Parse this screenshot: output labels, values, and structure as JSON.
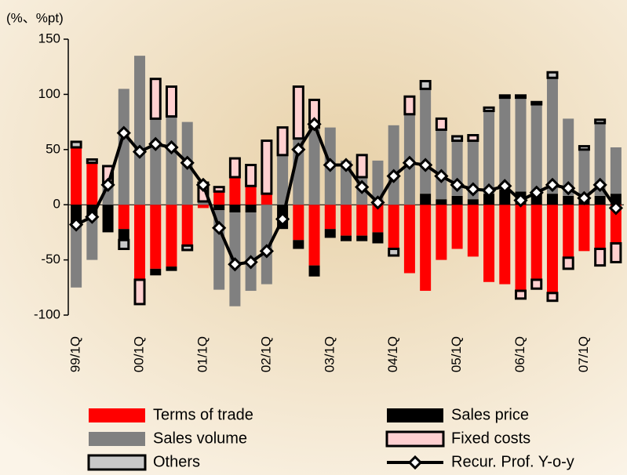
{
  "chart_data": {
    "type": "bar",
    "stacked": true,
    "y_label": "(%、%pt)",
    "categories": [
      "99/1Q",
      null,
      null,
      null,
      "00/1Q",
      null,
      null,
      null,
      "01/1Q",
      null,
      null,
      null,
      "02/1Q",
      null,
      null,
      null,
      "03/1Q",
      null,
      null,
      null,
      "04/1Q",
      null,
      null,
      null,
      "05/1Q",
      null,
      null,
      null,
      "06/1Q",
      null,
      null,
      null,
      "07/1Q",
      null,
      null
    ],
    "ylim": [
      -100,
      150
    ],
    "yticks": [
      -100,
      -50,
      0,
      50,
      100,
      150
    ],
    "series": [
      {
        "name": "Terms of trade",
        "color": "#ff0000",
        "values": [
          52,
          38,
          0,
          -22,
          -68,
          -58,
          -56,
          -37,
          -3,
          12,
          25,
          17,
          10,
          0,
          -32,
          -55,
          -22,
          -28,
          -28,
          -25,
          -40,
          -62,
          -78,
          -50,
          -40,
          -47,
          -70,
          -72,
          -78,
          -68,
          -80,
          -48,
          -42,
          -40,
          -35
        ]
      },
      {
        "name": "Sales price",
        "color": "#000000",
        "values": [
          -20,
          -10,
          -25,
          -10,
          0,
          -6,
          -4,
          0,
          0,
          -5,
          -7,
          -7,
          0,
          -22,
          -8,
          -10,
          -8,
          -5,
          -5,
          -10,
          0,
          0,
          10,
          5,
          8,
          5,
          10,
          14,
          12,
          10,
          10,
          8,
          5,
          8,
          10
        ]
      },
      {
        "name": "Sales volume",
        "color": "#808080",
        "values": [
          -55,
          -40,
          20,
          105,
          135,
          78,
          80,
          75,
          3,
          -72,
          -85,
          -71,
          -72,
          45,
          60,
          70,
          70,
          40,
          25,
          40,
          72,
          82,
          95,
          63,
          50,
          53,
          75,
          83,
          85,
          81,
          105,
          70,
          45,
          66,
          42
        ]
      },
      {
        "name": "Fixed costs",
        "color": "#ffd0d0",
        "values": [
          0,
          0,
          15,
          0,
          -22,
          36,
          27,
          0,
          17,
          4,
          17,
          19,
          48,
          25,
          47,
          25,
          0,
          0,
          20,
          0,
          0,
          16,
          0,
          10,
          0,
          5,
          0,
          0,
          -7,
          -8,
          -7,
          -10,
          0,
          -15,
          -17
        ]
      },
      {
        "name": "Others",
        "color": "#c8c8c8",
        "values": [
          5,
          3,
          0,
          -8,
          0,
          0,
          0,
          -4,
          0,
          0,
          0,
          0,
          0,
          0,
          0,
          0,
          0,
          0,
          0,
          0,
          -6,
          0,
          7,
          0,
          4,
          0,
          3,
          2,
          2,
          2,
          5,
          0,
          3,
          3,
          0
        ]
      },
      {
        "name": "Recur. Prof. Y-o-y",
        "color": "#000000",
        "type": "line",
        "values": [
          -18,
          -11,
          18,
          65,
          48,
          55,
          52,
          38,
          18,
          -21,
          -54,
          -52,
          -42,
          -13,
          50,
          73,
          36,
          36,
          16,
          2,
          26,
          38,
          36,
          26,
          18,
          14,
          13,
          17,
          4,
          11,
          18,
          15,
          6,
          18,
          -3
        ]
      }
    ]
  }
}
